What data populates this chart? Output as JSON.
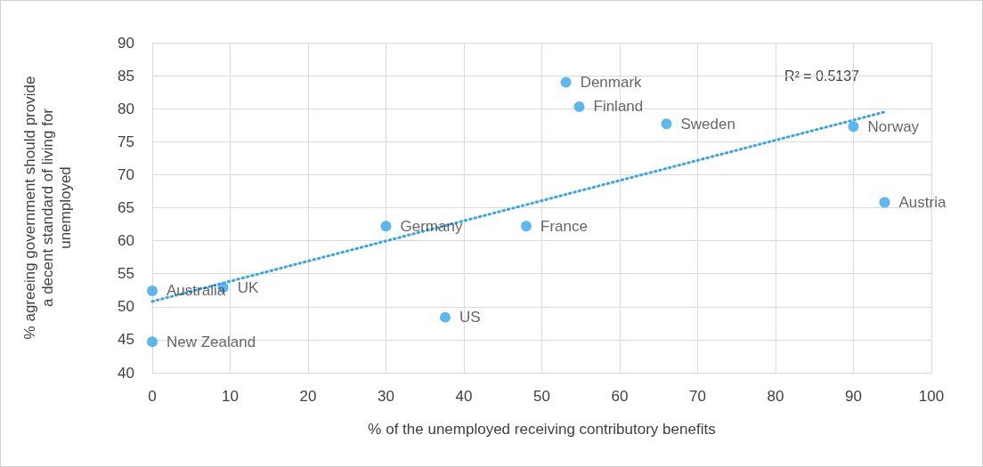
{
  "chart_data": {
    "type": "scatter",
    "xlabel": "% of the unemployed receiving contributory benefits",
    "ylabel": "% agreeing government should provide a decent standard of living for unemployed",
    "xlim": [
      0,
      100
    ],
    "xticks": [
      0,
      10,
      20,
      30,
      40,
      50,
      60,
      70,
      80,
      90,
      100
    ],
    "ylim": [
      40,
      90
    ],
    "yticks": [
      40,
      45,
      50,
      55,
      60,
      65,
      70,
      75,
      80,
      85,
      90
    ],
    "grid": true,
    "marker": "circle",
    "series": [
      {
        "color": "#37a6e8",
        "x": [
          53.1,
          54.8,
          66.0,
          90.0,
          94.0,
          30.0,
          48.0,
          0,
          9.1,
          37.6,
          0
        ],
        "values": [
          84.0,
          80.3,
          77.7,
          77.3,
          65.8,
          62.2,
          62.2,
          52.4,
          52.9,
          48.4,
          44.7
        ],
        "value_labels": [
          "Denmark",
          "Finland",
          "Sweden",
          "Norway",
          "Austria",
          "Germany",
          "France",
          "Australia",
          "UK",
          "US",
          "New Zealand"
        ]
      },
      {
        "type": "line",
        "color": "#37a6e8",
        "x": [
          0,
          94
        ],
        "values": [
          50.8,
          79.5
        ],
        "line_style": "dotted",
        "marker": "none"
      }
    ],
    "annotations": [
      "R² = 0.5137"
    ]
  }
}
